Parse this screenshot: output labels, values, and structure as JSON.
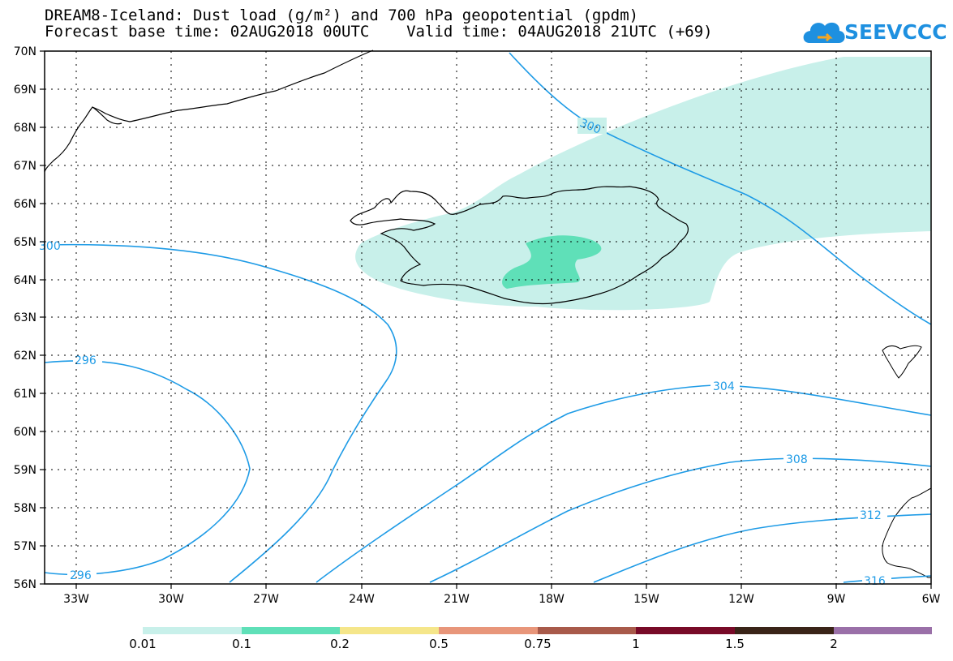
{
  "title": {
    "line1": "DREAM8-Iceland: Dust load (g/m²) and 700 hPa geopotential (gpdm)",
    "line2": "Forecast base time: 02AUG2018 00UTC    Valid time: 04AUG2018 21UTC (+69)"
  },
  "logo": {
    "text": "SEEVCCC",
    "icon": "cloud-icon"
  },
  "axes": {
    "lat_labels": [
      "70N",
      "69N",
      "68N",
      "67N",
      "66N",
      "65N",
      "64N",
      "63N",
      "62N",
      "61N",
      "60N",
      "59N",
      "58N",
      "57N",
      "56N"
    ],
    "lon_labels": [
      "33W",
      "30W",
      "27W",
      "24W",
      "21W",
      "18W",
      "15W",
      "12W",
      "9W",
      "6W"
    ]
  },
  "contours": {
    "color": "#1e9be6",
    "labels": [
      "300",
      "300",
      "296",
      "296",
      "304",
      "308",
      "312",
      "316"
    ]
  },
  "colorbar": {
    "colors": [
      "#c8f0ea",
      "#5fe0b8",
      "#f5e68a",
      "#e8967a",
      "#a85a4a",
      "#780a28",
      "#3a2418",
      "#9a70a8"
    ],
    "labels": [
      "0.01",
      "0.1",
      "0.2",
      "0.5",
      "0.75",
      "1",
      "1.5",
      "2"
    ]
  }
}
